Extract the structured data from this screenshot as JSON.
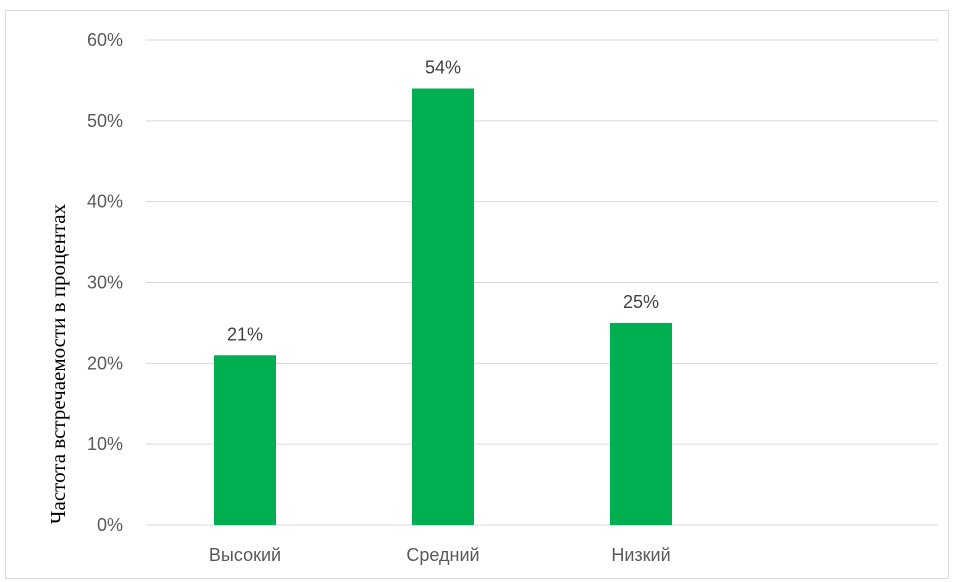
{
  "chart_data": {
    "type": "bar",
    "categories": [
      "Высокий",
      "Средний",
      "Низкий"
    ],
    "values": [
      21,
      54,
      25
    ],
    "value_labels": [
      "21%",
      "54%",
      "25%"
    ],
    "ylabel": "Частота встречаемости в процентах",
    "xlabel": "",
    "ylim": [
      0,
      60
    ],
    "y_ticks": [
      0,
      10,
      20,
      30,
      40,
      50,
      60
    ],
    "y_tick_labels": [
      "0%",
      "10%",
      "20%",
      "30%",
      "40%",
      "50%",
      "60%"
    ],
    "grid": true,
    "legend": "none",
    "bar_color": "#00B050",
    "gridline_color": "#d9d9d9"
  }
}
